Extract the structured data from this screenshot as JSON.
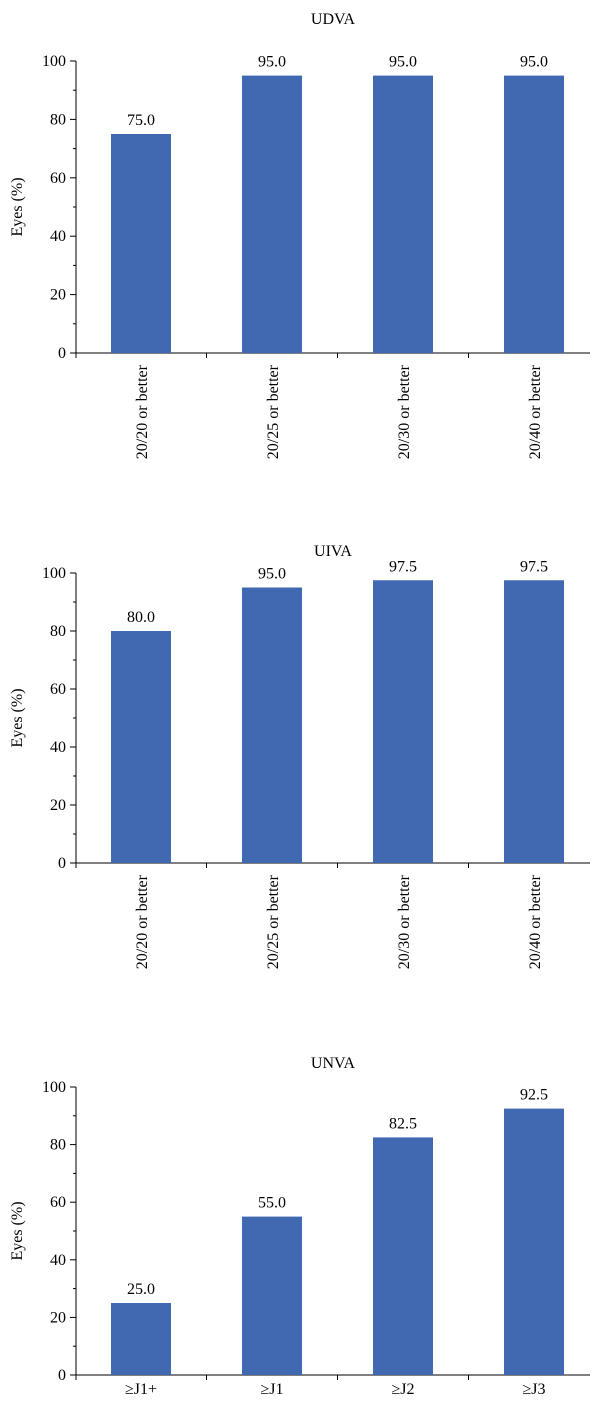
{
  "chart_data": [
    {
      "type": "bar",
      "title": "UDVA",
      "ylabel": "Eyes (%)",
      "xlabel": "",
      "ylim": [
        0,
        100
      ],
      "yticks": [
        0,
        20,
        40,
        60,
        80,
        100
      ],
      "categories": [
        "20/20 or better",
        "20/25 or better",
        "20/30 or better",
        "20/40 or better"
      ],
      "values": [
        75.0,
        95.0,
        95.0,
        95.0
      ],
      "value_labels": [
        "75.0",
        "95.0",
        "95.0",
        "95.0"
      ],
      "category_label_orientation": "vertical",
      "grid": false,
      "bar_color": "#4169b1"
    },
    {
      "type": "bar",
      "title": "UIVA",
      "ylabel": "Eyes (%)",
      "xlabel": "",
      "ylim": [
        0,
        100
      ],
      "yticks": [
        0,
        20,
        40,
        60,
        80,
        100
      ],
      "categories": [
        "20/20 or better",
        "20/25 or better",
        "20/30 or better",
        "20/40 or better"
      ],
      "values": [
        80.0,
        95.0,
        97.5,
        97.5
      ],
      "value_labels": [
        "80.0",
        "95.0",
        "97.5",
        "97.5"
      ],
      "category_label_orientation": "vertical",
      "grid": false,
      "bar_color": "#4169b1"
    },
    {
      "type": "bar",
      "title": "UNVA",
      "ylabel": "Eyes (%)",
      "xlabel": "",
      "ylim": [
        0,
        100
      ],
      "yticks": [
        0,
        20,
        40,
        60,
        80,
        100
      ],
      "categories": [
        "≥J1+",
        "≥J1",
        "≥J2",
        "≥J3"
      ],
      "values": [
        25.0,
        55.0,
        82.5,
        92.5
      ],
      "value_labels": [
        "25.0",
        "55.0",
        "82.5",
        "92.5"
      ],
      "category_label_orientation": "horizontal",
      "grid": false,
      "bar_color": "#4169b1"
    }
  ]
}
